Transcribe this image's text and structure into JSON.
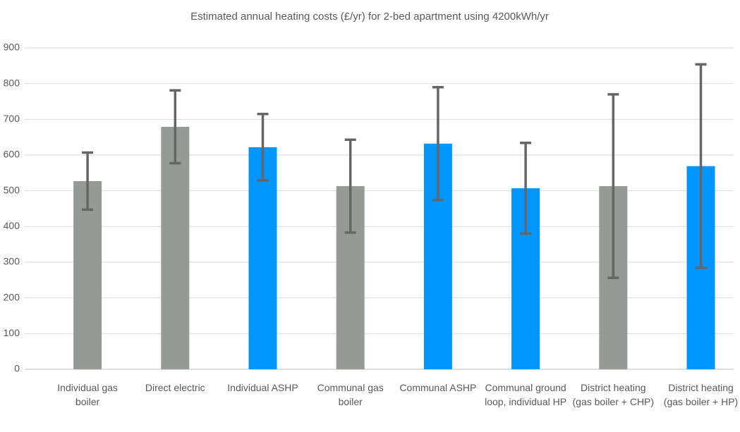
{
  "chart_data": {
    "type": "bar",
    "title": "Estimated annual heating costs (£/yr) for 2-bed apartment using 4200kWh/yr",
    "categories": [
      "Individual gas boiler",
      "Direct electric",
      "Individual ASHP",
      "Communal gas boiler",
      "Communal ASHP",
      "Communal ground loop, individual HP",
      "District heating (gas boiler + CHP)",
      "District heating (gas boiler + HP)"
    ],
    "values": [
      527,
      679,
      622,
      513,
      632,
      507,
      513,
      569
    ],
    "errors": [
      80,
      102,
      93,
      130,
      158,
      127,
      257,
      285
    ],
    "colors": [
      "#959a97",
      "#959a97",
      "#0096ff",
      "#959a97",
      "#0096ff",
      "#0096ff",
      "#959a97",
      "#0096ff"
    ],
    "error_color": "#666666",
    "ylim": [
      0,
      900
    ],
    "yticks": [
      0,
      100,
      200,
      300,
      400,
      500,
      600,
      700,
      800,
      900
    ],
    "grid": true
  }
}
